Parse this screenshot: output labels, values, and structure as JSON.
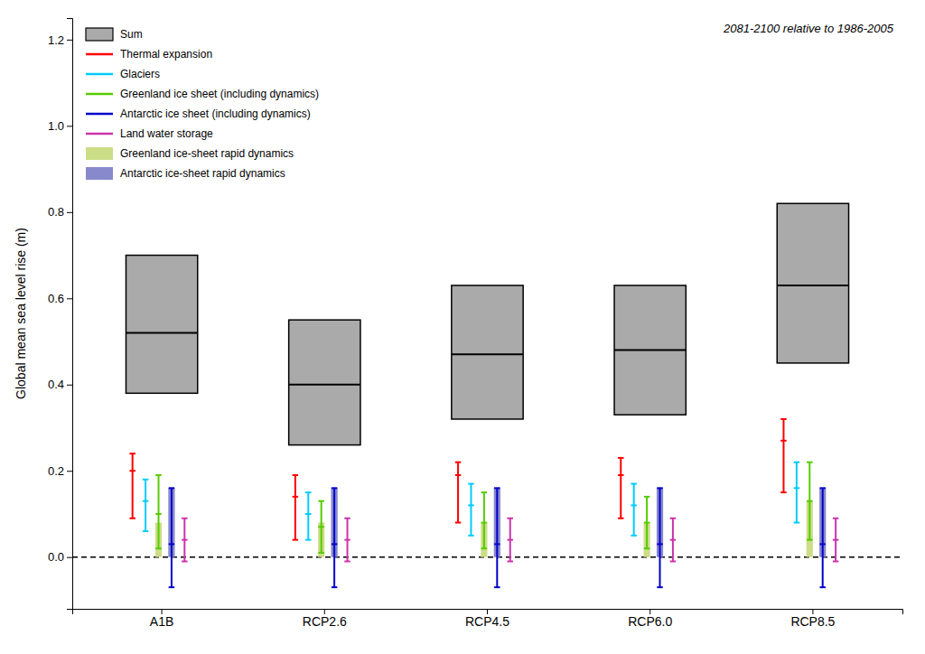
{
  "chart_data": {
    "type": "range",
    "categories": [
      "A1B",
      "RCP2.6",
      "RCP4.5",
      "RCP6.0",
      "RCP8.5"
    ],
    "ylabel": "Global mean sea level rise (m)",
    "annotation": "2081-2100 relative to 1986-2005",
    "ylim": [
      -0.12,
      1.25
    ],
    "yticks": [
      {
        "value": 0.0,
        "label": "0.0"
      },
      0.2,
      0.4,
      0.6,
      0.8,
      {
        "value": 1.0,
        "label": "1.0"
      },
      1.2
    ],
    "zero_line": 0,
    "legend": "upper left",
    "series": [
      {
        "name": "Sum",
        "type": "box",
        "color": "#aaaaaa",
        "low": [
          0.38,
          0.26,
          0.32,
          0.33,
          0.45
        ],
        "median": [
          0.52,
          0.4,
          0.47,
          0.48,
          0.63
        ],
        "high": [
          0.7,
          0.55,
          0.63,
          0.63,
          0.82
        ]
      },
      {
        "name": "Thermal expansion",
        "type": "range",
        "color": "#ff0000",
        "low": [
          0.09,
          0.04,
          0.08,
          0.09,
          0.15
        ],
        "mid": [
          0.2,
          0.14,
          0.19,
          0.19,
          0.27
        ],
        "high": [
          0.24,
          0.19,
          0.22,
          0.23,
          0.32
        ]
      },
      {
        "name": "Glaciers",
        "type": "range",
        "color": "#00ccff",
        "low": [
          0.06,
          0.04,
          0.05,
          0.05,
          0.08
        ],
        "mid": [
          0.13,
          0.1,
          0.12,
          0.12,
          0.16
        ],
        "high": [
          0.18,
          0.15,
          0.17,
          0.17,
          0.22
        ]
      },
      {
        "name": "Greenland ice sheet (including dynamics)",
        "type": "range",
        "color": "#55cc00",
        "low": [
          0.02,
          0.01,
          0.02,
          0.02,
          0.04
        ],
        "mid": [
          0.1,
          0.07,
          0.08,
          0.08,
          0.13
        ],
        "high": [
          0.19,
          0.13,
          0.15,
          0.14,
          0.22
        ]
      },
      {
        "name": "Antarctic ice sheet (including dynamics)",
        "type": "range",
        "color": "#0000cc",
        "low": [
          -0.07,
          -0.07,
          -0.07,
          -0.07,
          -0.07
        ],
        "mid": [
          0.03,
          0.03,
          0.03,
          0.03,
          0.03
        ],
        "high": [
          0.16,
          0.16,
          0.16,
          0.16,
          0.16
        ]
      },
      {
        "name": "Land water storage",
        "type": "range",
        "color": "#cc33aa",
        "low": [
          -0.01,
          -0.01,
          -0.01,
          -0.01,
          -0.01
        ],
        "mid": [
          0.04,
          0.04,
          0.04,
          0.04,
          0.04
        ],
        "high": [
          0.09,
          0.09,
          0.09,
          0.09,
          0.09
        ]
      },
      {
        "name": "Greenland ice-sheet rapid dynamics",
        "type": "bar",
        "color": "#ccdd88",
        "low": [
          0.0,
          0.0,
          0.0,
          0.0,
          0.0
        ],
        "high": [
          0.08,
          0.08,
          0.08,
          0.08,
          0.13
        ]
      },
      {
        "name": "Antarctic ice-sheet rapid dynamics",
        "type": "bar",
        "color": "#8888cc",
        "low": [
          0.0,
          0.0,
          0.0,
          0.0,
          0.0
        ],
        "high": [
          0.16,
          0.16,
          0.16,
          0.16,
          0.16
        ]
      }
    ]
  }
}
